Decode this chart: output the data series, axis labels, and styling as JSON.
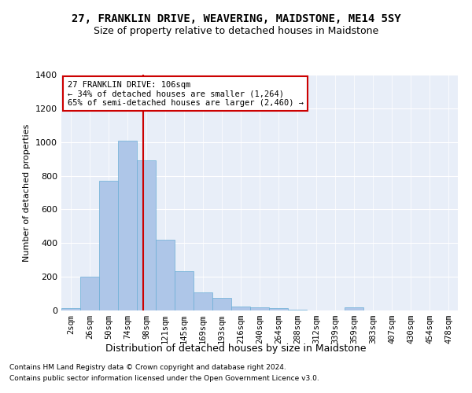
{
  "title": "27, FRANKLIN DRIVE, WEAVERING, MAIDSTONE, ME14 5SY",
  "subtitle": "Size of property relative to detached houses in Maidstone",
  "xlabel": "Distribution of detached houses by size in Maidstone",
  "ylabel": "Number of detached properties",
  "categories": [
    "2sqm",
    "26sqm",
    "50sqm",
    "74sqm",
    "98sqm",
    "121sqm",
    "145sqm",
    "169sqm",
    "193sqm",
    "216sqm",
    "240sqm",
    "264sqm",
    "288sqm",
    "312sqm",
    "339sqm",
    "359sqm",
    "383sqm",
    "407sqm",
    "430sqm",
    "454sqm",
    "478sqm"
  ],
  "values": [
    15,
    200,
    770,
    1010,
    890,
    420,
    235,
    108,
    75,
    22,
    20,
    12,
    5,
    0,
    0,
    20,
    0,
    0,
    0,
    0,
    0
  ],
  "bar_color": "#aec6e8",
  "bar_edgecolor": "#6baed6",
  "vline_color": "#cc0000",
  "vline_index": 4.33,
  "annotation_title": "27 FRANKLIN DRIVE: 106sqm",
  "annotation_line2": "← 34% of detached houses are smaller (1,264)",
  "annotation_line3": "65% of semi-detached houses are larger (2,460) →",
  "annotation_box_color": "#cc0000",
  "ylim": [
    0,
    1400
  ],
  "yticks": [
    0,
    200,
    400,
    600,
    800,
    1000,
    1200,
    1400
  ],
  "background_color": "#e8eef8",
  "footer_line1": "Contains HM Land Registry data © Crown copyright and database right 2024.",
  "footer_line2": "Contains public sector information licensed under the Open Government Licence v3.0.",
  "title_fontsize": 10,
  "subtitle_fontsize": 9
}
